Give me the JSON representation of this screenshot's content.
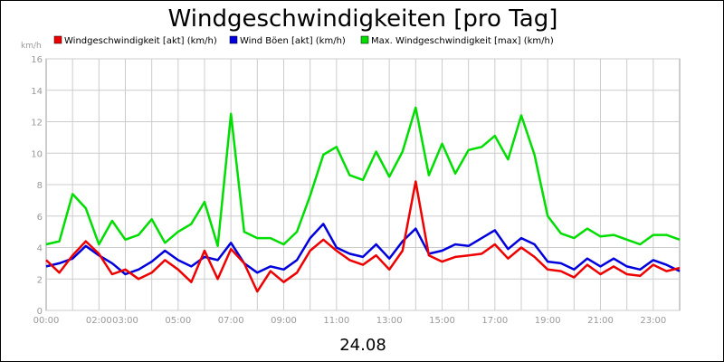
{
  "chart_data": {
    "type": "line",
    "title": "Windgeschwindigkeiten [pro Tag]",
    "ylabel": "km/h",
    "xlabel": "24.08",
    "ylim": [
      0,
      16
    ],
    "xlim": [
      0,
      24
    ],
    "y_ticks": [
      0,
      2,
      4,
      6,
      8,
      10,
      12,
      14,
      16
    ],
    "x_ticks": [
      {
        "hour": 0,
        "label": "00:00"
      },
      {
        "hour": 2,
        "label": "02:00"
      },
      {
        "hour": 3,
        "label": "03:00"
      },
      {
        "hour": 5,
        "label": "05:00"
      },
      {
        "hour": 7,
        "label": "07:00"
      },
      {
        "hour": 9,
        "label": "09:00"
      },
      {
        "hour": 11,
        "label": "11:00"
      },
      {
        "hour": 13,
        "label": "13:00"
      },
      {
        "hour": 15,
        "label": "15:00"
      },
      {
        "hour": 17,
        "label": "17:00"
      },
      {
        "hour": 19,
        "label": "19:00"
      },
      {
        "hour": 21,
        "label": "21:00"
      },
      {
        "hour": 23,
        "label": "23:00"
      }
    ],
    "grid": true,
    "legend_position": "top",
    "x": [
      0.0,
      0.5,
      1.0,
      1.5,
      2.0,
      2.5,
      3.0,
      3.5,
      4.0,
      4.5,
      5.0,
      5.5,
      6.0,
      6.5,
      7.0,
      7.5,
      8.0,
      8.5,
      9.0,
      9.5,
      10.0,
      10.5,
      11.0,
      11.5,
      12.0,
      12.5,
      13.0,
      13.5,
      14.0,
      14.5,
      15.0,
      15.5,
      16.0,
      16.5,
      17.0,
      17.5,
      18.0,
      18.5,
      19.0,
      19.5,
      20.0,
      20.5,
      21.0,
      21.5,
      22.0,
      22.5,
      23.0,
      23.5,
      24.0
    ],
    "series": [
      {
        "name": "Windgeschwindigkeit [akt] (km/h)",
        "color": "#ee0000",
        "values": [
          3.2,
          2.4,
          3.5,
          4.4,
          3.6,
          2.3,
          2.6,
          2.0,
          2.4,
          3.2,
          2.6,
          1.8,
          3.8,
          2.0,
          3.9,
          3.0,
          1.2,
          2.5,
          1.8,
          2.4,
          3.8,
          4.5,
          3.8,
          3.2,
          2.9,
          3.5,
          2.6,
          3.8,
          8.2,
          3.5,
          3.1,
          3.4,
          3.5,
          3.6,
          4.2,
          3.3,
          4.0,
          3.4,
          2.6,
          2.5,
          2.1,
          2.9,
          2.3,
          2.8,
          2.3,
          2.2,
          2.9,
          2.5,
          2.7
        ]
      },
      {
        "name": "Wind Böen [akt] (km/h)",
        "color": "#0000dd",
        "values": [
          2.8,
          3.0,
          3.3,
          4.1,
          3.5,
          3.0,
          2.3,
          2.6,
          3.1,
          3.8,
          3.2,
          2.8,
          3.4,
          3.2,
          4.3,
          3.0,
          2.4,
          2.8,
          2.6,
          3.2,
          4.6,
          5.5,
          4.0,
          3.6,
          3.4,
          4.2,
          3.3,
          4.4,
          5.2,
          3.6,
          3.8,
          4.2,
          4.1,
          4.6,
          5.1,
          3.9,
          4.6,
          4.2,
          3.1,
          3.0,
          2.6,
          3.3,
          2.8,
          3.3,
          2.8,
          2.6,
          3.2,
          2.9,
          2.5
        ]
      },
      {
        "name": "Max. Windgeschwindigkeit [max] (km/h)",
        "color": "#00dd00",
        "values": [
          4.2,
          4.4,
          7.4,
          6.5,
          4.2,
          5.7,
          4.5,
          4.8,
          5.8,
          4.3,
          5.0,
          5.5,
          6.9,
          4.1,
          12.5,
          5.0,
          4.6,
          4.6,
          4.2,
          5.0,
          7.3,
          9.9,
          10.4,
          8.6,
          8.3,
          10.1,
          8.5,
          10.1,
          12.9,
          8.6,
          10.6,
          8.7,
          10.2,
          10.4,
          11.1,
          9.6,
          12.4,
          9.9,
          6.0,
          4.9,
          4.6,
          5.2,
          4.7,
          4.8,
          4.5,
          4.2,
          4.8,
          4.8,
          4.5
        ]
      }
    ]
  }
}
